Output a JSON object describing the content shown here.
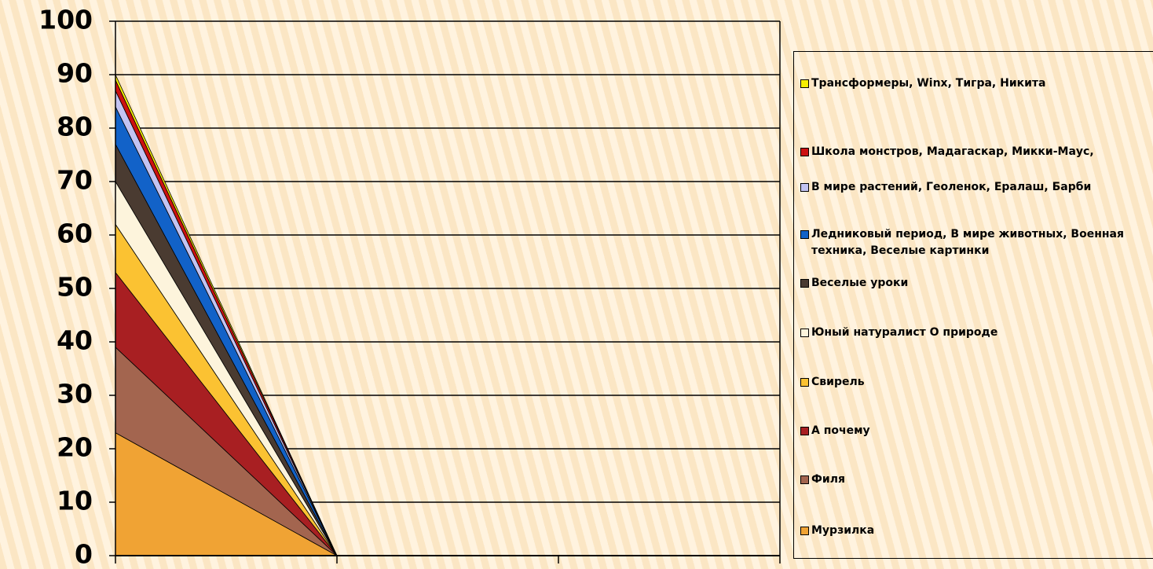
{
  "chart_data": {
    "type": "area",
    "stacked": true,
    "categories": [
      null,
      null,
      null,
      null
    ],
    "series": [
      {
        "name": "Мурзилка",
        "color": "#f0a334",
        "values": [
          23,
          0,
          0,
          0
        ]
      },
      {
        "name": "Филя",
        "color": "#a3654f",
        "values": [
          16,
          0,
          0,
          0
        ]
      },
      {
        "name": "А почему",
        "color": "#a81f22",
        "values": [
          14,
          0,
          0,
          0
        ]
      },
      {
        "name": "Свирель",
        "color": "#fbc232",
        "values": [
          9,
          0,
          0,
          0
        ]
      },
      {
        "name": "Юный натуралист О природе",
        "color": "#fdf4dc",
        "values": [
          8,
          0,
          0,
          0
        ]
      },
      {
        "name": "Веселые уроки",
        "color": "#4a3b31",
        "values": [
          7,
          0,
          0,
          0
        ]
      },
      {
        "name": "Ледниковый период, В мире животных, Военная техника, Веселые картинки",
        "color": "#1262c8",
        "values": [
          7,
          0,
          0,
          0
        ]
      },
      {
        "name": "В мире растений, Геоленок, Ералаш, Барби",
        "color": "#c3c3f2",
        "values": [
          3,
          0,
          0,
          0
        ]
      },
      {
        "name": "Школа монстров, Мадагаскар, Микки-Маус,",
        "color": "#cc1111",
        "values": [
          2,
          0,
          0,
          0
        ]
      },
      {
        "name": "Трансформеры, Winx, Тигра, Никита",
        "color": "#f6ee00",
        "values": [
          1,
          0,
          0,
          0
        ]
      }
    ],
    "ylim": [
      0,
      100
    ],
    "yticks": [
      0,
      10,
      20,
      30,
      40,
      50,
      60,
      70,
      80,
      90,
      100
    ],
    "grid": true,
    "legend": "right"
  }
}
